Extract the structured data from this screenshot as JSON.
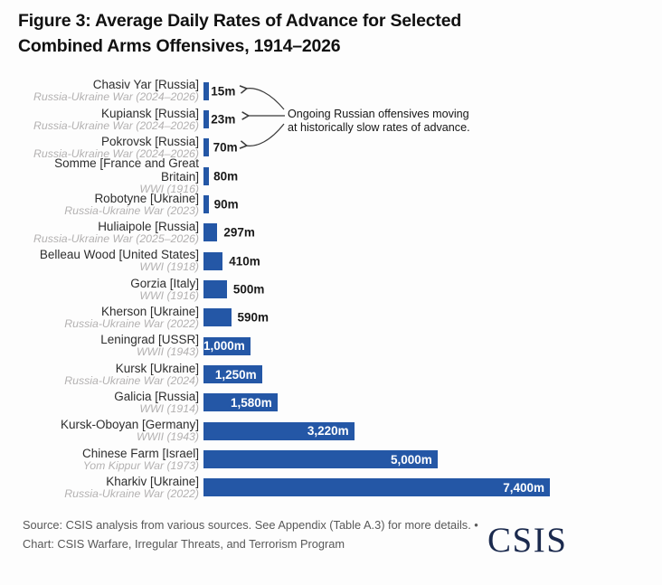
{
  "title": {
    "line1": "Figure 3: Average Daily Rates of Advance for Selected",
    "line2": "Combined Arms Offensives, 1914–2026"
  },
  "annotation": {
    "line1": "Ongoing Russian offensives moving",
    "line2": "at historically slow rates of advance."
  },
  "chart_data": {
    "type": "bar",
    "orientation": "horizontal",
    "title": "Figure 3: Average Daily Rates of Advance for Selected Combined Arms Offensives, 1914–2026",
    "xlabel": "",
    "ylabel": "",
    "unit": "meters per day",
    "xlim": [
      0,
      7400
    ],
    "grid": false,
    "bar_color": "#2457A6",
    "categories": [
      "Chasiv Yar [Russia]",
      "Kupiansk [Russia]",
      "Pokrovsk [Russia]",
      "Somme [France and Great Britain]",
      "Robotyne [Ukraine]",
      "Huliaipole [Russia]",
      "Belleau Wood [United States]",
      "Gorzia [Italy]",
      "Kherson [Ukraine]",
      "Leningrad [USSR]",
      "Kursk [Ukraine]",
      "Galicia [Russia]",
      "Kursk-Oboyan [Germany]",
      "Chinese Farm [Israel]",
      "Kharkiv [Ukraine]"
    ],
    "values": [
      15,
      23,
      70,
      80,
      90,
      297,
      410,
      500,
      590,
      1000,
      1250,
      1580,
      3220,
      5000,
      7400
    ],
    "rows": [
      {
        "label": "Chasiv Yar [Russia]",
        "sublabel": "Russia-Ukraine War (2024–2026)",
        "value": 15,
        "value_label": "15m"
      },
      {
        "label": "Kupiansk [Russia]",
        "sublabel": "Russia-Ukraine War (2024–2026)",
        "value": 23,
        "value_label": "23m"
      },
      {
        "label": "Pokrovsk [Russia]",
        "sublabel": "Russia-Ukraine War (2024–2026)",
        "value": 70,
        "value_label": "70m"
      },
      {
        "label": "Somme [France and Great Britain]",
        "sublabel": "WWI (1916)",
        "value": 80,
        "value_label": "80m"
      },
      {
        "label": "Robotyne [Ukraine]",
        "sublabel": "Russia-Ukraine War (2023)",
        "value": 90,
        "value_label": "90m"
      },
      {
        "label": "Huliaipole [Russia]",
        "sublabel": "Russia-Ukraine War (2025–2026)",
        "value": 297,
        "value_label": "297m"
      },
      {
        "label": "Belleau Wood [United States]",
        "sublabel": "WWI (1918)",
        "value": 410,
        "value_label": "410m"
      },
      {
        "label": "Gorzia [Italy]",
        "sublabel": "WWI (1916)",
        "value": 500,
        "value_label": "500m"
      },
      {
        "label": "Kherson [Ukraine]",
        "sublabel": "Russia-Ukraine War (2022)",
        "value": 590,
        "value_label": "590m"
      },
      {
        "label": "Leningrad [USSR]",
        "sublabel": "WWII (1943)",
        "value": 1000,
        "value_label": "1,000m"
      },
      {
        "label": "Kursk [Ukraine]",
        "sublabel": "Russia-Ukraine War (2024)",
        "value": 1250,
        "value_label": "1,250m"
      },
      {
        "label": "Galicia [Russia]",
        "sublabel": "WWI (1914)",
        "value": 1580,
        "value_label": "1,580m"
      },
      {
        "label": "Kursk-Oboyan [Germany]",
        "sublabel": "WWII (1943)",
        "value": 3220,
        "value_label": "3,220m"
      },
      {
        "label": "Chinese Farm [Israel]",
        "sublabel": "Yom Kippur War (1973)",
        "value": 5000,
        "value_label": "5,000m"
      },
      {
        "label": "Kharkiv [Ukraine]",
        "sublabel": "Russia-Ukraine War (2022)",
        "value": 7400,
        "value_label": "7,400m"
      }
    ]
  },
  "footer": {
    "source_line": "Source: CSIS analysis from various sources. See Appendix (Table A.3) for more details. •",
    "chart_line": "Chart: CSIS Warfare, Irregular Threats, and Terrorism Program",
    "logo_text": "CSIS"
  },
  "colors": {
    "bar": "#2457A6",
    "value_inside": "#ffffff",
    "value_outside": "#1a1a1a",
    "sublabel": "#b3b1b1",
    "logo_navy": "#1b2a4e"
  }
}
